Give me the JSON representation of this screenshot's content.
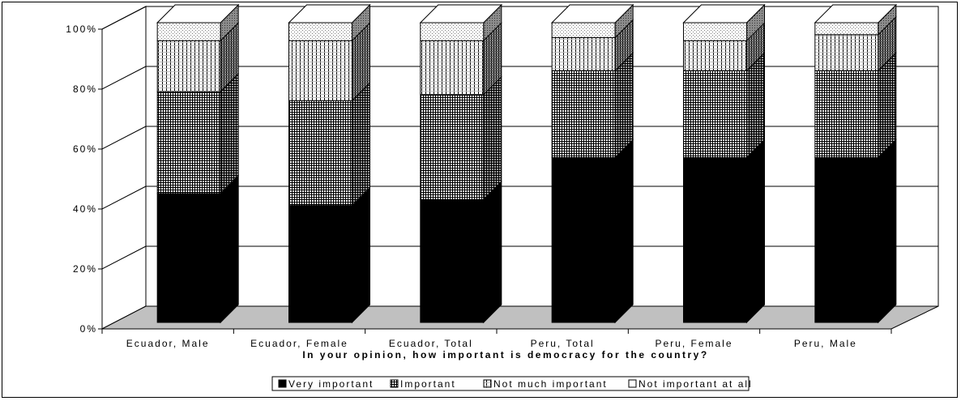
{
  "chart_data": {
    "type": "bar",
    "stacked": true,
    "style": "3d",
    "xlabel": "In your opinion, how important is democracy for the country?",
    "categories": [
      "Ecuador, Male",
      "Ecuador, Female",
      "Ecuador, Total",
      "Peru, Total",
      "Peru, Female",
      "Peru, Male"
    ],
    "ylim": [
      0,
      100
    ],
    "yticks": [
      "0%",
      "20%",
      "40%",
      "60%",
      "80%",
      "100%"
    ],
    "grid": true,
    "legend_position": "bottom",
    "series": [
      {
        "name": "Very important",
        "values": [
          43,
          39,
          41,
          55,
          55,
          55
        ],
        "pattern": "solid-black"
      },
      {
        "name": "Important",
        "values": [
          34,
          35,
          35,
          29,
          29,
          29
        ],
        "pattern": "fine-grid"
      },
      {
        "name": "Not much important",
        "values": [
          17,
          20,
          18,
          11,
          10,
          12
        ],
        "pattern": "vertical-lines"
      },
      {
        "name": "Not important at all",
        "values": [
          6,
          6,
          6,
          5,
          6,
          4
        ],
        "pattern": "dots"
      }
    ]
  }
}
